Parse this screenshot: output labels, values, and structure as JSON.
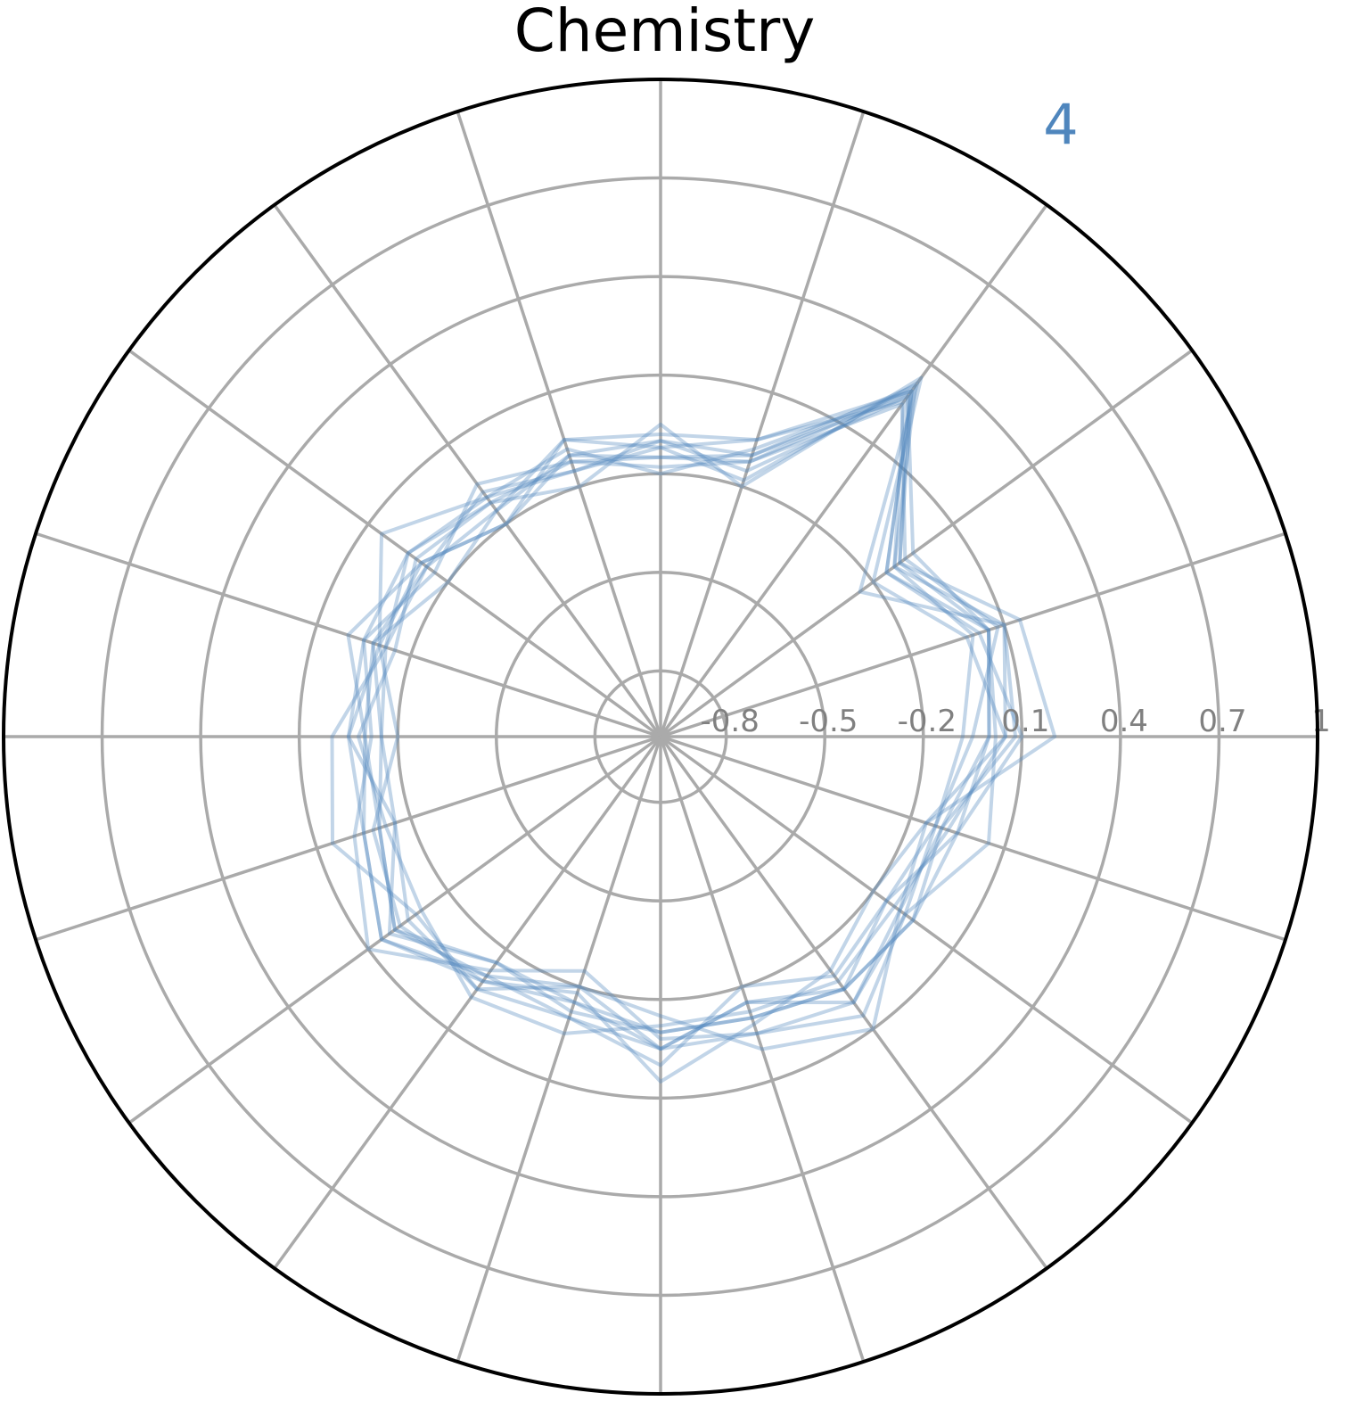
{
  "colors": {
    "series": "#4f86bd",
    "grid": "#aaaaaa",
    "frame": "#000000",
    "tick_text": "#808080"
  },
  "chart_data": {
    "type": "radar",
    "title": "Chemistry",
    "annotation": "4",
    "num_axes": 20,
    "rlim": [
      -1,
      1
    ],
    "rticks": [
      -0.8,
      -0.5,
      -0.2,
      0.1,
      0.4,
      0.7,
      1
    ],
    "rtick_labels": [
      "-0.8",
      "-0.5",
      "-0.2",
      "0.1",
      "0.4",
      "0.7",
      "1"
    ],
    "grid": true,
    "series": [
      {
        "values": [
          0.05,
          0.1,
          -0.12,
          0.32,
          -0.1,
          -0.15,
          -0.1,
          -0.15,
          -0.12,
          -0.08,
          -0.1,
          -0.05,
          0.05,
          -0.1,
          -0.2,
          -0.05,
          -0.15,
          0.0,
          -0.1,
          -0.15
        ]
      },
      {
        "values": [
          0.0,
          0.05,
          -0.1,
          0.28,
          -0.15,
          -0.1,
          -0.15,
          -0.1,
          -0.05,
          -0.12,
          -0.15,
          -0.1,
          0.0,
          -0.15,
          -0.15,
          -0.1,
          -0.1,
          -0.05,
          -0.05,
          -0.1
        ]
      },
      {
        "values": [
          0.1,
          0.02,
          -0.15,
          0.3,
          -0.05,
          -0.12,
          -0.05,
          -0.2,
          -0.1,
          -0.1,
          -0.05,
          -0.15,
          -0.05,
          -0.05,
          -0.1,
          0.0,
          -0.2,
          -0.1,
          -0.15,
          -0.05
        ]
      },
      {
        "values": [
          -0.05,
          0.08,
          -0.08,
          0.25,
          -0.12,
          -0.18,
          -0.12,
          -0.05,
          -0.15,
          -0.05,
          -0.12,
          -0.02,
          0.1,
          -0.12,
          -0.25,
          -0.08,
          -0.05,
          0.05,
          -0.08,
          -0.12
        ]
      },
      {
        "values": [
          0.05,
          -0.02,
          -0.2,
          0.35,
          -0.2,
          -0.05,
          -0.2,
          -0.12,
          -0.08,
          -0.15,
          -0.08,
          -0.12,
          -0.1,
          -0.02,
          -0.05,
          -0.12,
          -0.12,
          -0.08,
          -0.12,
          -0.08
        ]
      },
      {
        "values": [
          0.2,
          0.15,
          -0.1,
          0.3,
          -0.08,
          -0.2,
          -0.08,
          -0.1,
          0.05,
          -0.1,
          -0.2,
          -0.08,
          -0.02,
          -0.08,
          -0.18,
          0.05,
          -0.08,
          -0.12,
          -0.2,
          -0.15
        ]
      },
      {
        "values": [
          0.0,
          0.05,
          -0.05,
          0.28,
          -0.1,
          -0.1,
          -0.1,
          -0.2,
          -0.1,
          0.0,
          -0.1,
          -0.1,
          0.0,
          -0.1,
          -0.1,
          -0.05,
          -0.15,
          -0.05,
          -0.05,
          -0.05
        ]
      },
      {
        "values": [
          0.08,
          0.1,
          -0.25,
          0.33,
          -0.18,
          -0.12,
          -0.15,
          -0.08,
          -0.12,
          -0.12,
          0.0,
          0.05,
          -0.08,
          -0.05,
          -0.2,
          -0.15,
          0.0,
          0.1,
          -0.1,
          -0.1
        ]
      },
      {
        "values": [
          -0.08,
          0.0,
          -0.12,
          0.26,
          -0.05,
          -0.08,
          -0.05,
          -0.15,
          -0.2,
          -0.08,
          -0.15,
          -0.15,
          0.02,
          -0.15,
          -0.12,
          -0.1,
          -0.1,
          -0.05,
          -0.15,
          -0.12
        ]
      },
      {
        "values": [
          0.02,
          0.05,
          -0.15,
          0.3,
          -0.12,
          -0.15,
          -0.12,
          -0.12,
          -0.05,
          -0.05,
          -0.05,
          -0.05,
          0.05,
          -0.08,
          -0.15,
          -0.05,
          -0.05,
          0.0,
          -0.08,
          0.05
        ]
      }
    ]
  }
}
